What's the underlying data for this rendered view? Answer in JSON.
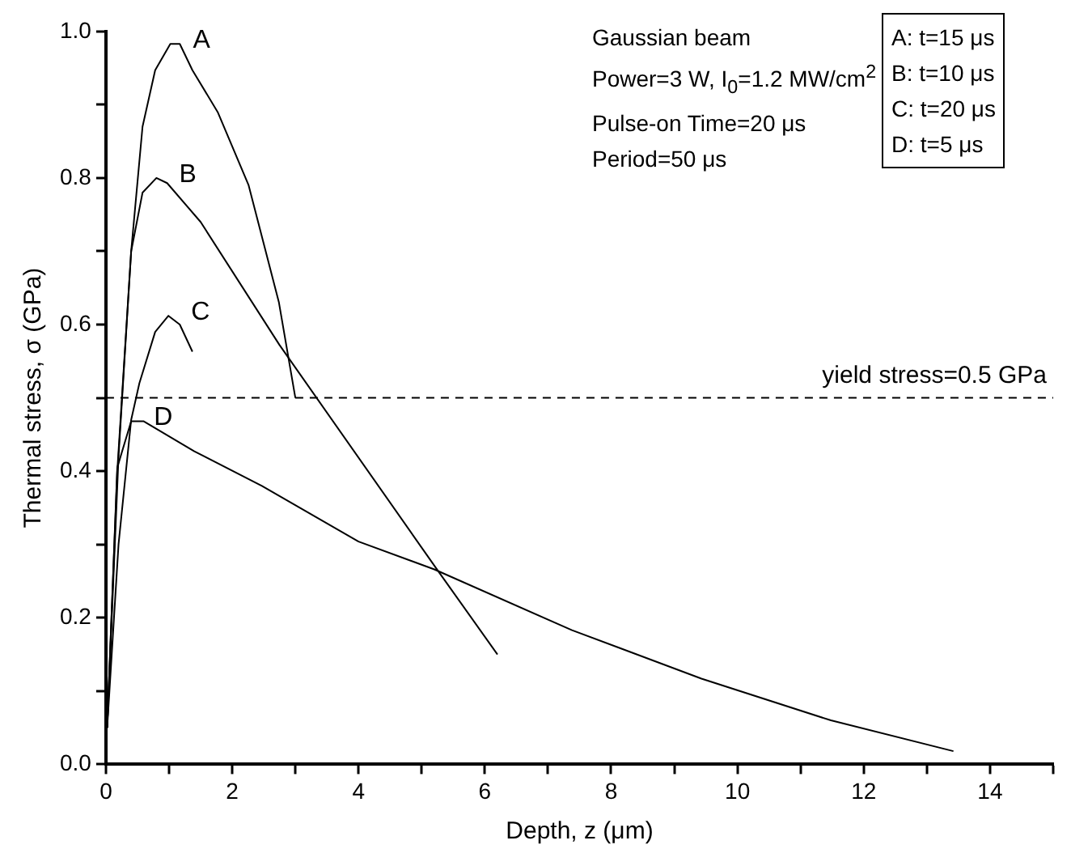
{
  "chart_data": {
    "type": "line",
    "xlabel": "Depth, z (μm)",
    "ylabel": "Thermal stress, σ (GPa)",
    "xlim": [
      0,
      15
    ],
    "xticks": [
      0,
      {
        "value": 1,
        "label": null
      },
      2,
      {
        "value": 3,
        "label": null
      },
      4,
      {
        "value": 5,
        "label": null
      },
      6,
      {
        "value": 7,
        "label": null
      },
      8,
      {
        "value": 9,
        "label": null
      },
      10,
      {
        "value": 11,
        "label": null
      },
      12,
      {
        "value": 13,
        "label": null
      },
      14,
      {
        "value": 15,
        "label": null
      }
    ],
    "ylim": [
      0,
      1.0
    ],
    "yticks": [
      {
        "value": 0,
        "label": "0.0"
      },
      {
        "value": 0.1,
        "label": null
      },
      {
        "value": 0.2,
        "label": "0.2"
      },
      {
        "value": 0.3,
        "label": null
      },
      {
        "value": 0.4,
        "label": "0.4"
      },
      {
        "value": 0.5,
        "label": null
      },
      {
        "value": 0.6,
        "label": "0.6"
      },
      {
        "value": 0.7,
        "label": null
      },
      {
        "value": 0.8,
        "label": "0.8"
      },
      {
        "value": 0.9,
        "label": null
      },
      {
        "value": 1.0,
        "label": "1.0"
      }
    ],
    "series": [
      {
        "name": "A",
        "color": "#000000",
        "x": [
          0.02,
          0.18,
          0.4,
          0.58,
          0.78,
          1.02,
          1.17,
          1.37,
          1.77,
          2.26,
          2.74,
          3.0
        ],
        "values": [
          0.05,
          0.4,
          0.7,
          0.87,
          0.947,
          0.983,
          0.983,
          0.947,
          0.89,
          0.79,
          0.63,
          0.5
        ]
      },
      {
        "name": "B",
        "color": "#000000",
        "x": [
          0.02,
          0.2,
          0.4,
          0.58,
          0.8,
          0.97,
          1.5,
          2.75,
          5.25,
          6.2
        ],
        "values": [
          0.05,
          0.42,
          0.7,
          0.78,
          0.8,
          0.793,
          0.74,
          0.572,
          0.265,
          0.15
        ]
      },
      {
        "name": "C",
        "color": "#000000",
        "x": [
          0.02,
          0.2,
          0.4,
          0.53,
          0.78,
          0.99,
          1.17,
          1.37
        ],
        "values": [
          0.05,
          0.3,
          0.47,
          0.52,
          0.59,
          0.612,
          0.6,
          0.563
        ]
      },
      {
        "name": "D",
        "color": "#000000",
        "x": [
          0.02,
          0.18,
          0.4,
          0.6,
          1.4,
          2.47,
          4.0,
          5.2,
          7.38,
          9.43,
          11.48,
          13.42
        ],
        "values": [
          0.05,
          0.405,
          0.468,
          0.468,
          0.427,
          0.38,
          0.304,
          0.266,
          0.183,
          0.117,
          0.06,
          0.018
        ]
      }
    ],
    "ref_lines": [
      {
        "axis": "y",
        "value": 0.5,
        "label": "yield stress=0.5 GPa",
        "color": "#000000",
        "line_style": "dashed"
      }
    ],
    "annotations": [
      "Gaussian beam",
      "Power=3 W, I$_{0}$=1.2 MW/cm$^{2}$",
      "Pulse-on Time=20 μs",
      "Period=50 μs",
      "A: t=15 μs\nB: t=10 μs\nC: t=20 μs\nD: t=5 μs"
    ],
    "marker": "none",
    "line_style": "solid",
    "legend": false,
    "grid": false
  }
}
